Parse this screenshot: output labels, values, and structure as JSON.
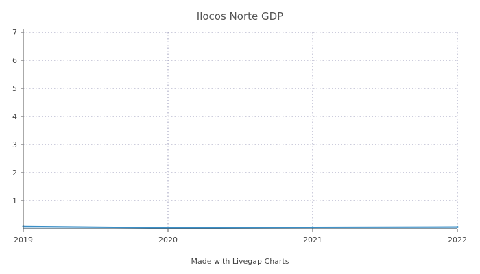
{
  "chart_data": {
    "type": "area",
    "title": "Ilocos Norte GDP",
    "categories": [
      "2019",
      "2020",
      "2021",
      "2022"
    ],
    "x_tick_labels": [
      "2019",
      "2020",
      "2021",
      "2022"
    ],
    "y_tick_labels": [
      "1",
      "2",
      "3",
      "4",
      "5",
      "6",
      "7"
    ],
    "series": [
      {
        "values": [
          0.08,
          0.03,
          0.05,
          0.06
        ]
      }
    ],
    "ylim": [
      0,
      7
    ],
    "grid": true,
    "colors": {
      "line": "#3a8fc7",
      "fill": "#7fb6db"
    }
  },
  "footer": "Made with Livegap Charts"
}
